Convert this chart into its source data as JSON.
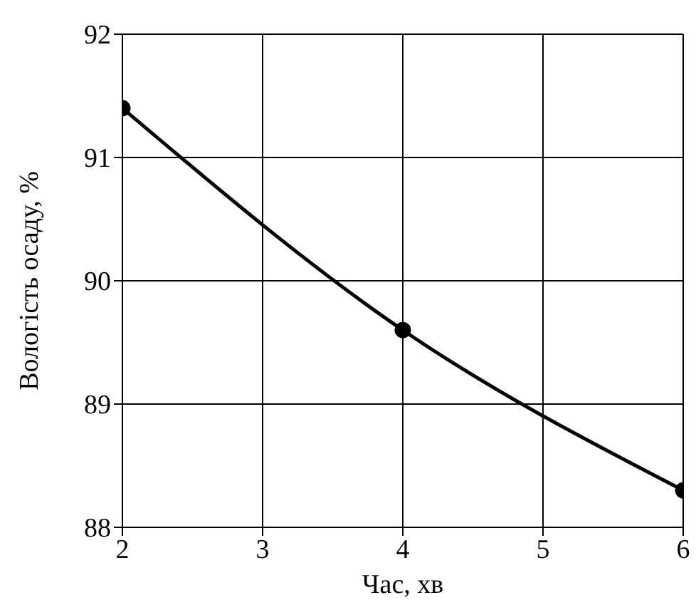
{
  "chart_data": {
    "type": "line",
    "xlabel": "Час, хв",
    "ylabel": "Вологість осаду, %",
    "x": [
      2,
      4,
      6
    ],
    "series": [
      {
        "color": "#000000",
        "values": [
          91.4,
          89.6,
          88.3
        ]
      }
    ],
    "xlim": [
      2,
      6
    ],
    "xticks": [
      2,
      3,
      4,
      5,
      6
    ],
    "ylim": [
      88,
      92
    ],
    "yticks": [
      88,
      89,
      90,
      91,
      92
    ],
    "grid": true,
    "marker": "circle",
    "line_style": "solid"
  }
}
